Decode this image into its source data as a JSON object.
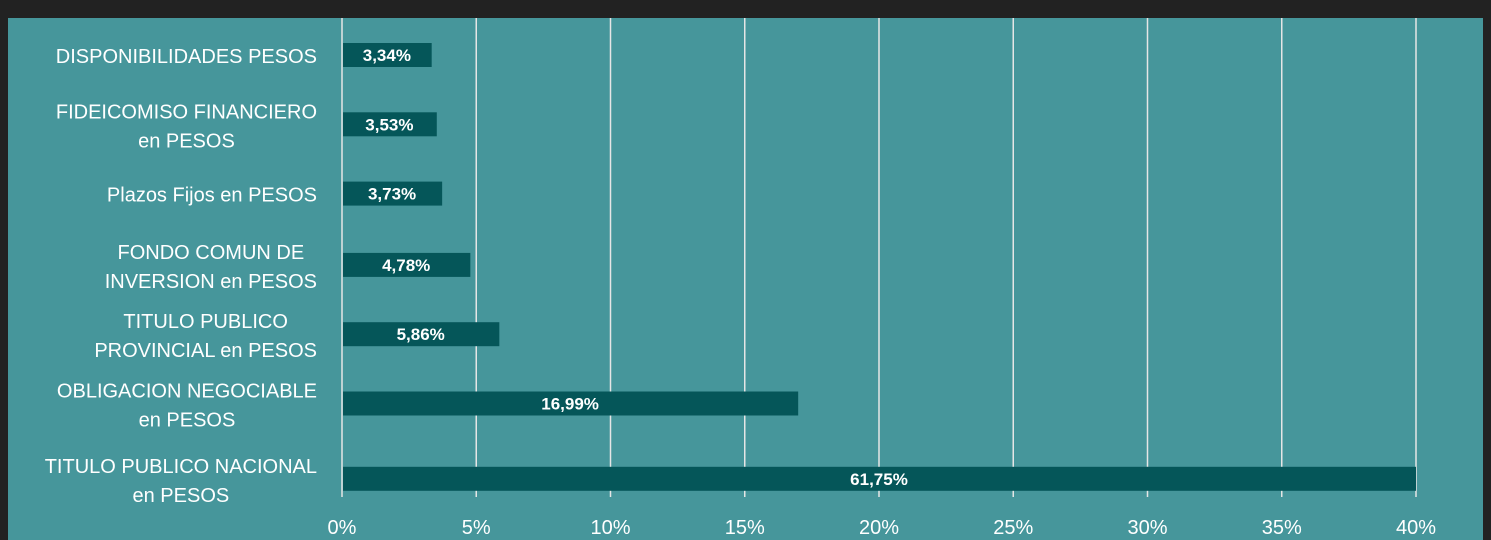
{
  "chart_data": {
    "type": "bar",
    "orientation": "horizontal",
    "categories": [
      [
        "DISPONIBILIDADES PESOS"
      ],
      [
        "FIDEICOMISO FINANCIERO",
        "en PESOS"
      ],
      [
        "Plazos Fijos en PESOS"
      ],
      [
        "FONDO COMUN DE",
        "INVERSION en PESOS"
      ],
      [
        "TITULO PUBLICO",
        "PROVINCIAL en PESOS"
      ],
      [
        "OBLIGACION NEGOCIABLE",
        "en PESOS"
      ],
      [
        "TITULO PUBLICO NACIONAL",
        "en PESOS"
      ]
    ],
    "values": [
      3.34,
      3.53,
      3.73,
      4.78,
      5.86,
      16.99,
      61.75
    ],
    "value_labels": [
      "3,34%",
      "3,53%",
      "3,73%",
      "4,78%",
      "5,86%",
      "16,99%",
      "61,75%"
    ],
    "xlim": [
      0,
      40
    ],
    "x_ticks": [
      0,
      5,
      10,
      15,
      20,
      25,
      30,
      35,
      40
    ],
    "x_tick_labels": [
      "0%",
      "5%",
      "10%",
      "15%",
      "20%",
      "25%",
      "30%",
      "35%",
      "40%"
    ],
    "grid": true,
    "colors": {
      "background": "#222222",
      "plot_area": "#46969b",
      "bar": "#055659",
      "gridline": "#e6e6e6",
      "text": "#ffffff"
    }
  }
}
